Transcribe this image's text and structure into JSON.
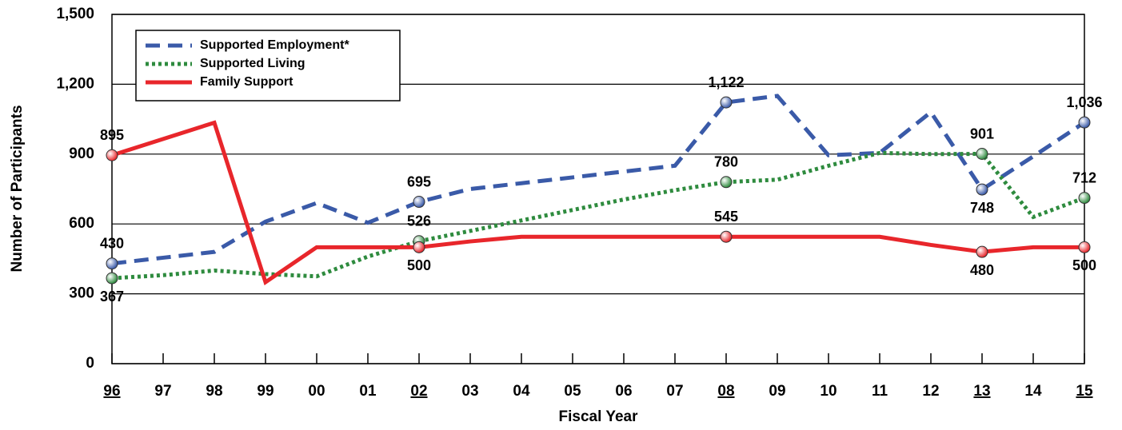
{
  "chart_data": {
    "type": "line",
    "x_label": "Fiscal Year",
    "y_label": "Number of Participants",
    "categories": [
      "96",
      "97",
      "98",
      "99",
      "00",
      "01",
      "02",
      "03",
      "04",
      "05",
      "06",
      "07",
      "08",
      "09",
      "10",
      "11",
      "12",
      "13",
      "14",
      "15"
    ],
    "underlined_categories": [
      0,
      6,
      12,
      17,
      19
    ],
    "ylim": [
      0,
      1500
    ],
    "yticks": [
      0,
      {
        "value": 300,
        "label": "300"
      },
      600,
      900,
      {
        "value": 1200,
        "label": "1,200"
      },
      {
        "value": 1500,
        "label": "1,500"
      }
    ],
    "grid": true,
    "legend": "upper left",
    "series": [
      {
        "name": "Supported Employment*",
        "color": "#3a5aa8",
        "style": "dashed",
        "values": [
          430,
          455,
          480,
          610,
          690,
          605,
          695,
          750,
          775,
          800,
          825,
          850,
          1122,
          1150,
          895,
          905,
          1080,
          748,
          890,
          1036
        ],
        "value_labels": [
          "430",
          null,
          null,
          null,
          null,
          null,
          "695",
          null,
          null,
          null,
          null,
          null,
          "1,122",
          null,
          null,
          null,
          null,
          "748",
          null,
          "1,036"
        ]
      },
      {
        "name": "Supported Living",
        "color": "#2e8b3e",
        "style": "dotted",
        "values": [
          367,
          380,
          400,
          385,
          375,
          460,
          526,
          570,
          615,
          660,
          705,
          745,
          780,
          790,
          850,
          905,
          900,
          901,
          630,
          712
        ],
        "value_labels": [
          "367",
          null,
          null,
          null,
          null,
          null,
          "526",
          null,
          null,
          null,
          null,
          null,
          "780",
          null,
          null,
          null,
          null,
          "901",
          null,
          "712"
        ]
      },
      {
        "name": "Family Support",
        "color": "#e8262b",
        "style": "solid",
        "values": [
          895,
          965,
          1035,
          350,
          500,
          500,
          500,
          525,
          545,
          545,
          545,
          545,
          545,
          545,
          545,
          545,
          510,
          480,
          500,
          500
        ],
        "value_labels": [
          "895",
          null,
          null,
          null,
          null,
          null,
          "500",
          null,
          null,
          null,
          null,
          null,
          "545",
          null,
          null,
          null,
          null,
          "480",
          null,
          "500"
        ]
      }
    ]
  }
}
